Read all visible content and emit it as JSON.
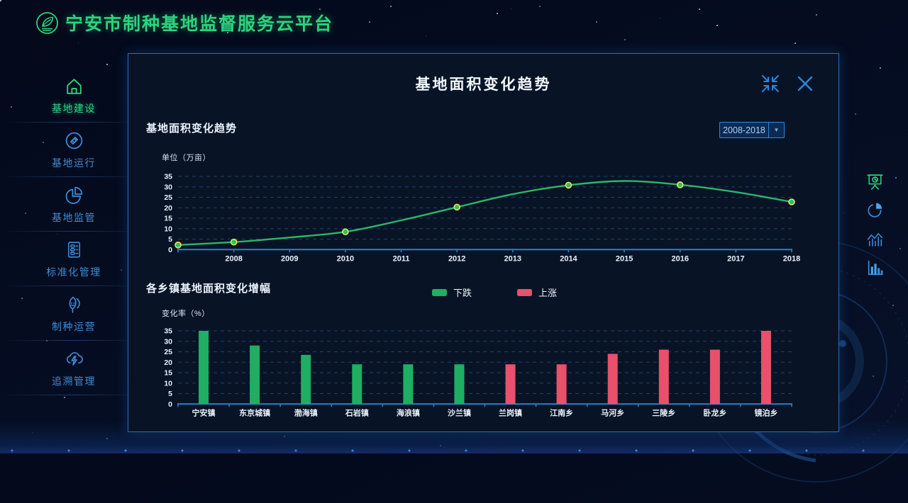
{
  "app": {
    "title": "宁安市制种基地监督服务云平台",
    "brand_color": "#2bd47d",
    "accent_blue": "#2e86d8"
  },
  "sidebar": {
    "items": [
      {
        "label": "基地建设",
        "icon": "home-icon",
        "active": true
      },
      {
        "label": "基地运行",
        "icon": "compass-ruler-icon",
        "active": false
      },
      {
        "label": "基地监管",
        "icon": "pie-chart-icon",
        "active": false
      },
      {
        "label": "标准化管理",
        "icon": "checklist-icon",
        "active": false
      },
      {
        "label": "制种运营",
        "icon": "seed-leaf-icon",
        "active": false
      },
      {
        "label": "追溯管理",
        "icon": "cloud-bolt-icon",
        "active": false
      }
    ]
  },
  "right_toolbar": {
    "items": [
      {
        "icon": "presentation-chart-icon",
        "active": true
      },
      {
        "icon": "pie-icon",
        "active": false
      },
      {
        "icon": "trend-lines-icon",
        "active": false
      },
      {
        "icon": "bar-chart-icon",
        "active": false
      }
    ]
  },
  "modal": {
    "title": "基地面积变化趋势",
    "line_section": {
      "title": "基地面积变化趋势",
      "range_value": "2008-2018",
      "unit_label": "单位（万亩）"
    },
    "bar_section": {
      "title": "各乡镇基地面积变化增幅",
      "unit_label": "变化率（%）",
      "legend": [
        {
          "label": "下跌",
          "trend": "down",
          "color": "#1fae62"
        },
        {
          "label": "上涨",
          "trend": "up",
          "color": "#e8506b"
        }
      ]
    }
  },
  "chart_data": [
    {
      "type": "line",
      "title": "基地面积变化趋势 2008-2018",
      "ylabel": "单位（万亩）",
      "ylim": [
        0,
        35
      ],
      "ytick_step": 5,
      "grid": "dashed-horizontal",
      "axis_color": "#2f7ec2",
      "grid_color": "#1d4066",
      "x": [
        2007,
        2008,
        2009,
        2010,
        2011,
        2012,
        2013,
        2014,
        2015,
        2016,
        2017,
        2018
      ],
      "x_tick_labels": [
        "",
        "2008",
        "2009",
        "2010",
        "2011",
        "2012",
        "2013",
        "2014",
        "2015",
        "2016",
        "2017",
        "2018"
      ],
      "series": [
        {
          "name": "基地面积",
          "color": "#2db469",
          "marker_color": "#2abf6e",
          "marker_ring": "#efe34e",
          "values": [
            2.2,
            3.6,
            5.8,
            8.5,
            14,
            20.3,
            26.5,
            30.8,
            32.8,
            31,
            27.5,
            22.8
          ],
          "marker_years": [
            2007,
            2008,
            2010,
            2012,
            2014,
            2016,
            2018
          ]
        }
      ]
    },
    {
      "type": "bar",
      "title": "各乡镇基地面积变化增幅",
      "ylabel": "变化率（%）",
      "ylim": [
        0,
        35
      ],
      "ytick_step": 5,
      "grid": "dashed-horizontal",
      "axis_color": "#2f7ec2",
      "grid_color": "#1d4066",
      "categories": [
        "宁安镇",
        "东京城镇",
        "渤海镇",
        "石岩镇",
        "海浪镇",
        "沙兰镇",
        "兰岗镇",
        "江南乡",
        "马河乡",
        "三陵乡",
        "卧龙乡",
        "镜泊乡"
      ],
      "values": [
        35,
        28,
        23.5,
        19,
        19,
        19,
        19,
        19,
        24,
        26,
        26,
        35
      ],
      "trends": [
        "down",
        "down",
        "down",
        "down",
        "down",
        "down",
        "up",
        "up",
        "up",
        "up",
        "up",
        "up"
      ],
      "trend_colors": {
        "down": "#1fae62",
        "up": "#e8506b"
      },
      "legend": [
        {
          "label": "下跌",
          "trend": "down"
        },
        {
          "label": "上涨",
          "trend": "up"
        }
      ]
    }
  ]
}
